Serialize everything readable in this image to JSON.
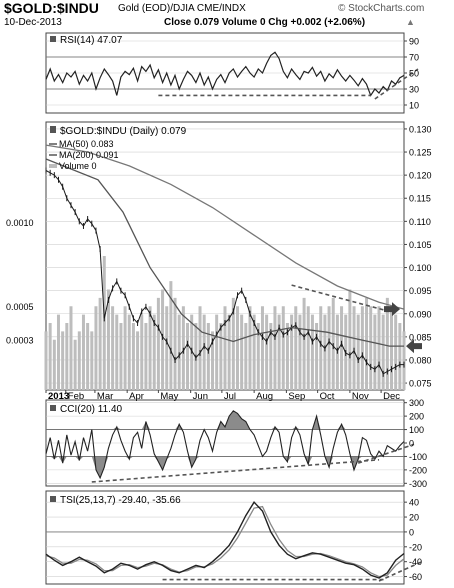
{
  "header": {
    "symbol": "$GOLD:$INDU",
    "description": "Gold (EOD)/DJIA CME/INDX",
    "watermark": "© StockCharts.com",
    "date": "10-Dec-2013",
    "quote": "Close 0.079  Volume 0  Chg +0.002 (+2.06%)",
    "quote_arrow": "▲"
  },
  "colors": {
    "price": "#1a1a1a",
    "ma50": "#555555",
    "ma200": "#777777",
    "volume": "#bdbdbd",
    "indicator": "#222222",
    "signal": "#888888",
    "fill": "#777777",
    "trendline": "#555555",
    "arrow": "#444444",
    "grid": "#d0d0d0"
  },
  "chart_data": [
    {
      "type": "line",
      "panel": "rsi",
      "title": "RSI(14) 47.07",
      "ylim": [
        0,
        100
      ],
      "yticks": [
        10,
        30,
        50,
        70,
        90
      ],
      "overbought": 70,
      "oversold": 30,
      "series": [
        {
          "name": "RSI(14)",
          "x": [
            0,
            4,
            8,
            12,
            16,
            20,
            24,
            28,
            32,
            36,
            40,
            44,
            48,
            52,
            56,
            60,
            64,
            68,
            72,
            76,
            80,
            84,
            88,
            92,
            96,
            100,
            104,
            108,
            112,
            116,
            120,
            124,
            128,
            132,
            136,
            140,
            144,
            148,
            152,
            156,
            160,
            164,
            168,
            172,
            176,
            180,
            184,
            188,
            192,
            196,
            200,
            204,
            208,
            212,
            216,
            220,
            224,
            228,
            232,
            236,
            240,
            244,
            248,
            252,
            256,
            260,
            264,
            268,
            272,
            276,
            280,
            284,
            288,
            292,
            296,
            300,
            304,
            308,
            312,
            316,
            320,
            324,
            328,
            332,
            336,
            340,
            344
          ],
          "values": [
            42,
            55,
            40,
            48,
            38,
            50,
            45,
            52,
            36,
            47,
            40,
            50,
            30,
            44,
            55,
            48,
            40,
            22,
            45,
            52,
            48,
            56,
            40,
            58,
            52,
            60,
            44,
            54,
            38,
            50,
            35,
            47,
            30,
            42,
            52,
            47,
            38,
            50,
            35,
            45,
            30,
            42,
            48,
            38,
            50,
            55,
            45,
            52,
            58,
            50,
            45,
            55,
            50,
            62,
            72,
            76,
            68,
            52,
            44,
            55,
            48,
            42,
            52,
            50,
            57,
            46,
            52,
            40,
            49,
            44,
            54,
            46,
            40,
            47,
            41,
            34,
            43,
            36,
            22,
            30,
            25,
            33,
            28,
            40,
            36,
            44,
            47
          ]
        }
      ]
    },
    {
      "type": "line",
      "panel": "price",
      "title": "$GOLD:$INDU (Daily) 0.079",
      "legend": [
        "MA(50) 0.083",
        "MA(200) 0.091",
        "Volume 0"
      ],
      "ylim": [
        0.0735,
        0.1315
      ],
      "yticks": [
        0.075,
        0.08,
        0.085,
        0.09,
        0.095,
        0.1,
        0.105,
        0.11,
        0.115,
        0.12,
        0.125,
        0.13
      ],
      "volume_ticks": [
        "0.0003",
        "0.0005",
        "0.0010"
      ],
      "series": [
        {
          "name": "Price",
          "x": [
            0,
            4,
            8,
            12,
            16,
            20,
            24,
            28,
            32,
            36,
            40,
            44,
            48,
            52,
            56,
            60,
            64,
            68,
            72,
            76,
            80,
            84,
            88,
            92,
            96,
            100,
            104,
            108,
            112,
            116,
            120,
            124,
            128,
            132,
            136,
            140,
            144,
            148,
            152,
            156,
            160,
            164,
            168,
            172,
            176,
            180,
            184,
            188,
            192,
            196,
            200,
            204,
            208,
            212,
            216,
            220,
            224,
            228,
            232,
            236,
            240,
            244,
            248,
            252,
            256,
            260,
            264,
            268,
            272,
            276,
            280,
            284,
            288,
            292,
            296,
            300,
            304,
            308,
            312,
            316,
            320,
            324,
            328,
            332,
            336,
            340,
            344
          ],
          "values": [
            0.121,
            0.1205,
            0.12,
            0.119,
            0.1175,
            0.115,
            0.1135,
            0.112,
            0.11,
            0.109,
            0.1105,
            0.1095,
            0.108,
            0.104,
            0.089,
            0.093,
            0.0955,
            0.097,
            0.095,
            0.094,
            0.0915,
            0.089,
            0.088,
            0.0905,
            0.0915,
            0.09,
            0.088,
            0.087,
            0.085,
            0.084,
            0.082,
            0.08,
            0.081,
            0.082,
            0.0835,
            0.082,
            0.0805,
            0.0815,
            0.083,
            0.082,
            0.084,
            0.0855,
            0.087,
            0.088,
            0.089,
            0.0905,
            0.094,
            0.095,
            0.093,
            0.09,
            0.088,
            0.086,
            0.085,
            0.084,
            0.086,
            0.085,
            0.087,
            0.0855,
            0.086,
            0.087,
            0.0875,
            0.086,
            0.085,
            0.086,
            0.084,
            0.085,
            0.0835,
            0.0825,
            0.084,
            0.083,
            0.082,
            0.0835,
            0.0815,
            0.081,
            0.082,
            0.08,
            0.081,
            0.0795,
            0.0785,
            0.078,
            0.079,
            0.077,
            0.0775,
            0.078,
            0.0785,
            0.079,
            0.079
          ]
        },
        {
          "name": "MA(50)",
          "x": [
            0,
            50,
            74,
            100,
            130,
            150,
            180,
            200,
            236,
            270,
            300,
            330,
            344
          ],
          "values": [
            0.1235,
            0.119,
            0.112,
            0.1,
            0.09,
            0.086,
            0.084,
            0.0855,
            0.087,
            0.086,
            0.0845,
            0.083,
            0.083
          ]
        },
        {
          "name": "MA(200)",
          "x": [
            0,
            40,
            80,
            120,
            160,
            200,
            240,
            280,
            320,
            344
          ],
          "values": [
            0.1265,
            0.125,
            0.122,
            0.118,
            0.113,
            0.107,
            0.101,
            0.096,
            0.0925,
            0.091
          ]
        },
        {
          "name": "Volume",
          "x": [
            0,
            4,
            8,
            12,
            16,
            20,
            24,
            28,
            32,
            36,
            40,
            44,
            48,
            52,
            56,
            60,
            64,
            68,
            72,
            76,
            80,
            84,
            88,
            92,
            96,
            100,
            104,
            108,
            112,
            116,
            120,
            124,
            128,
            132,
            136,
            140,
            144,
            148,
            152,
            156,
            160,
            164,
            168,
            172,
            176,
            180,
            184,
            188,
            192,
            196,
            200,
            204,
            208,
            212,
            216,
            220,
            224,
            228,
            232,
            236,
            240,
            244,
            248,
            252,
            256,
            260,
            264,
            268,
            272,
            276,
            280,
            284,
            288,
            292,
            296,
            300,
            304,
            308,
            312,
            316,
            320,
            324,
            328,
            332,
            336,
            340,
            344
          ],
          "values": [
            0.00035,
            0.0004,
            0.0003,
            0.00045,
            0.00035,
            0.0004,
            0.0005,
            0.0003,
            0.00035,
            0.00045,
            0.0004,
            0.00035,
            0.0005,
            0.00055,
            0.0008,
            0.0006,
            0.0005,
            0.00045,
            0.0004,
            0.0005,
            0.00045,
            0.0004,
            0.00035,
            0.00045,
            0.0004,
            0.0005,
            0.00045,
            0.00055,
            0.0006,
            0.0005,
            0.00065,
            0.00055,
            0.00045,
            0.0005,
            0.0004,
            0.00045,
            0.0004,
            0.0005,
            0.00045,
            0.0004,
            0.00035,
            0.00045,
            0.0004,
            0.0005,
            0.00045,
            0.00055,
            0.0005,
            0.00045,
            0.0004,
            0.0005,
            0.00045,
            0.0004,
            0.0005,
            0.00045,
            0.0004,
            0.0005,
            0.00045,
            0.0005,
            0.0004,
            0.00045,
            0.0005,
            0.00045,
            0.00055,
            0.0005,
            0.00045,
            0.0004,
            0.0005,
            0.00045,
            0.0005,
            0.00055,
            0.00045,
            0.0005,
            0.00045,
            0.0006,
            0.0005,
            0.00045,
            0.0005,
            0.00055,
            0.0005,
            0.00045,
            0.0005,
            0.00045,
            0.00055,
            0.0005,
            0.00045,
            0.0004,
            0.00035
          ]
        }
      ],
      "x_labels": [
        "2013",
        "Feb",
        "Mar",
        "Apr",
        "May",
        "Jun",
        "Jul",
        "Aug",
        "Sep",
        "Oct",
        "Nov",
        "Dec"
      ],
      "x_label_positions": [
        0,
        19,
        47,
        78,
        108,
        139,
        169,
        200,
        231,
        261,
        292,
        322
      ]
    },
    {
      "type": "area",
      "panel": "cci",
      "title": "CCI(20) 11.40",
      "ylim": [
        -320,
        320
      ],
      "yticks": [
        -300,
        -200,
        -100,
        0,
        100,
        200,
        300
      ],
      "guide_lines": [
        100,
        -100
      ],
      "series": [
        {
          "name": "CCI(20)",
          "x": [
            0,
            4,
            8,
            12,
            16,
            20,
            24,
            28,
            32,
            36,
            40,
            44,
            48,
            52,
            56,
            60,
            64,
            68,
            72,
            76,
            80,
            84,
            88,
            92,
            96,
            100,
            104,
            108,
            112,
            116,
            120,
            124,
            128,
            132,
            136,
            140,
            144,
            148,
            152,
            156,
            160,
            164,
            168,
            172,
            176,
            180,
            184,
            188,
            192,
            196,
            200,
            204,
            208,
            212,
            216,
            220,
            224,
            228,
            232,
            236,
            240,
            244,
            248,
            252,
            256,
            260,
            264,
            268,
            272,
            276,
            280,
            284,
            288,
            292,
            296,
            300,
            304,
            308,
            312,
            316,
            320,
            324,
            328,
            332,
            336,
            340,
            344
          ],
          "values": [
            -80,
            40,
            -120,
            20,
            -150,
            60,
            -90,
            10,
            -130,
            40,
            -60,
            100,
            -200,
            -260,
            -180,
            -40,
            60,
            120,
            20,
            -60,
            -120,
            40,
            80,
            -40,
            160,
            60,
            -80,
            -140,
            -200,
            -120,
            -40,
            60,
            140,
            80,
            -60,
            -180,
            -120,
            20,
            100,
            40,
            -60,
            80,
            160,
            120,
            200,
            240,
            220,
            180,
            160,
            100,
            60,
            -20,
            -100,
            -60,
            40,
            120,
            80,
            -100,
            -140,
            40,
            120,
            60,
            -80,
            -160,
            100,
            200,
            60,
            -100,
            -180,
            -40,
            80,
            140,
            60,
            -80,
            -200,
            -120,
            40,
            20,
            -80,
            -120,
            -60,
            -100,
            -20,
            -40,
            -60,
            -20,
            11
          ]
        }
      ]
    },
    {
      "type": "line",
      "panel": "tsi",
      "title": "TSI(25,13,7) -29.40, -35.66",
      "ylim": [
        -70,
        55
      ],
      "yticks": [
        -60,
        -40,
        -20,
        0,
        20,
        40
      ],
      "series": [
        {
          "name": "TSI",
          "x": [
            0,
            8,
            16,
            24,
            32,
            40,
            48,
            56,
            64,
            72,
            80,
            88,
            96,
            104,
            112,
            120,
            128,
            136,
            144,
            152,
            160,
            168,
            176,
            184,
            192,
            200,
            208,
            216,
            224,
            232,
            240,
            248,
            256,
            264,
            272,
            280,
            288,
            296,
            304,
            312,
            320,
            328,
            336,
            344
          ],
          "values": [
            -30,
            -38,
            -45,
            -40,
            -34,
            -40,
            -46,
            -55,
            -50,
            -42,
            -45,
            -50,
            -44,
            -40,
            -45,
            -52,
            -55,
            -50,
            -45,
            -48,
            -40,
            -30,
            -18,
            0,
            22,
            40,
            28,
            0,
            -18,
            -30,
            -36,
            -32,
            -28,
            -30,
            -34,
            -38,
            -42,
            -44,
            -50,
            -58,
            -62,
            -55,
            -38,
            -29
          ]
        },
        {
          "name": "Signal",
          "x": [
            0,
            8,
            16,
            24,
            32,
            40,
            48,
            56,
            64,
            72,
            80,
            88,
            96,
            104,
            112,
            120,
            128,
            136,
            144,
            152,
            160,
            168,
            176,
            184,
            192,
            200,
            208,
            216,
            224,
            232,
            240,
            248,
            256,
            264,
            272,
            280,
            288,
            296,
            304,
            312,
            320,
            328,
            336,
            344
          ],
          "values": [
            -32,
            -35,
            -42,
            -42,
            -37,
            -38,
            -43,
            -52,
            -52,
            -45,
            -44,
            -48,
            -46,
            -42,
            -44,
            -50,
            -54,
            -52,
            -47,
            -47,
            -43,
            -35,
            -24,
            -8,
            12,
            32,
            34,
            10,
            -10,
            -25,
            -33,
            -33,
            -30,
            -29,
            -32,
            -36,
            -40,
            -43,
            -47,
            -55,
            -60,
            -58,
            -45,
            -36
          ]
        }
      ]
    }
  ]
}
